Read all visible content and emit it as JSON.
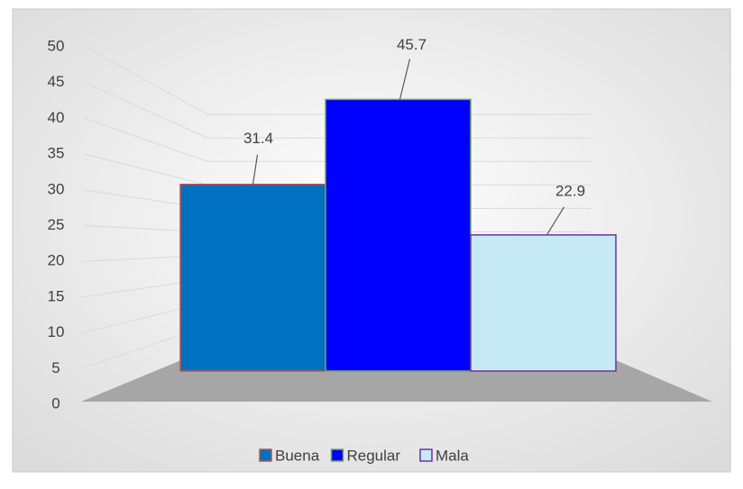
{
  "chart_data": {
    "type": "bar3d",
    "series": [
      {
        "name": "Buena",
        "color": "#0070c0",
        "values": [
          31.4
        ]
      },
      {
        "name": "Regular",
        "color": "#0000ff",
        "values": [
          45.7
        ]
      },
      {
        "name": "Mala",
        "color": "#c6eaf4",
        "values": [
          22.9
        ]
      }
    ],
    "ylim": [
      0,
      50
    ],
    "yticks": [
      0,
      5,
      10,
      15,
      20,
      25,
      30,
      35,
      40,
      45,
      50
    ],
    "grid": true,
    "legend": "bottom"
  }
}
